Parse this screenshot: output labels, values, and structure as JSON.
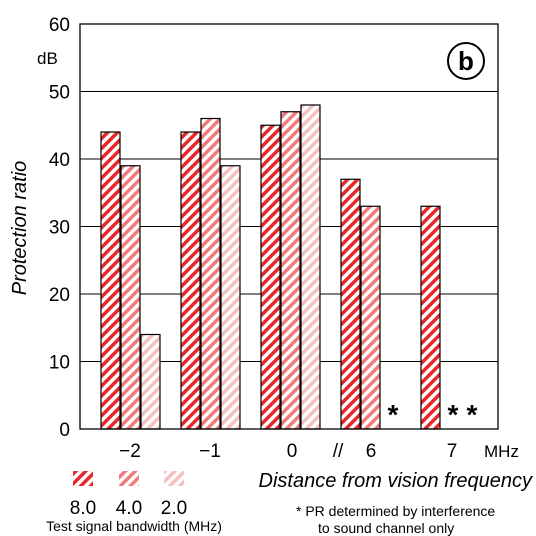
{
  "chart_data": {
    "type": "bar",
    "panel_label": "b",
    "ylabel": "Protection ratio",
    "yunit": "dB",
    "xlabel": "Distance from vision frequency",
    "xunit": "MHz",
    "ylim": [
      0,
      60
    ],
    "yticks": [
      "0",
      "10",
      "20",
      "30",
      "40",
      "50",
      "60"
    ],
    "grid": true,
    "categories": [
      "-2",
      "-1",
      "0",
      "6",
      "7"
    ],
    "axis_break": "//",
    "series": [
      {
        "name": "8.0",
        "color": "#e8272a",
        "values": [
          44,
          44,
          45,
          37,
          33
        ]
      },
      {
        "name": "4.0",
        "color": "#f07a7c",
        "values": [
          39,
          46,
          47,
          33,
          null
        ]
      },
      {
        "name": "2.0",
        "color": "#f7c0c0",
        "values": [
          14,
          39,
          48,
          null,
          null
        ]
      }
    ],
    "missing_markers": [
      "*",
      "*",
      "*"
    ],
    "legend_title": "Test signal bandwidth (MHz)",
    "footnote_line1": "* PR determined by interference",
    "footnote_line2": "to sound channel only"
  }
}
